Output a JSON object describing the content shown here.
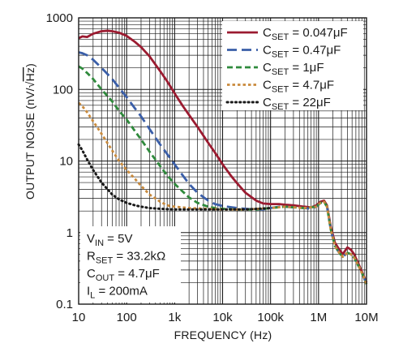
{
  "chart_data": {
    "type": "line",
    "xscale": "log",
    "yscale": "log",
    "xlim": [
      10,
      10000000
    ],
    "ylim": [
      0.1,
      1000
    ],
    "grid": true,
    "xlabel": "FREQUENCY (Hz)",
    "ylabel_parts": [
      "OUTPUT NOISE (nV/",
      "√",
      "Hz",
      ")"
    ],
    "xticks": [
      {
        "value": 10,
        "label": "10"
      },
      {
        "value": 100,
        "label": "100"
      },
      {
        "value": 1000,
        "label": "1k"
      },
      {
        "value": 10000,
        "label": "10k"
      },
      {
        "value": 100000,
        "label": "100k"
      },
      {
        "value": 1000000,
        "label": "1M"
      },
      {
        "value": 10000000,
        "label": "10M"
      }
    ],
    "yticks": [
      {
        "value": 0.1,
        "label": "0.1"
      },
      {
        "value": 1,
        "label": "1"
      },
      {
        "value": 10,
        "label": "10"
      },
      {
        "value": 100,
        "label": "100"
      },
      {
        "value": 1000,
        "label": "1000"
      }
    ],
    "legend_position": "top-right",
    "series": [
      {
        "label_main": "C",
        "label_sub": "SET",
        "label_value": " = 0.047μF",
        "color": "#9b1b30",
        "dash": "solid",
        "points": [
          [
            10,
            520
          ],
          [
            12,
            550
          ],
          [
            15,
            540
          ],
          [
            20,
            600
          ],
          [
            30,
            650
          ],
          [
            40,
            660
          ],
          [
            50,
            650
          ],
          [
            70,
            620
          ],
          [
            100,
            560
          ],
          [
            150,
            460
          ],
          [
            200,
            390
          ],
          [
            300,
            290
          ],
          [
            500,
            180
          ],
          [
            700,
            130
          ],
          [
            1000,
            88
          ],
          [
            1500,
            58
          ],
          [
            2000,
            44
          ],
          [
            3000,
            30
          ],
          [
            5000,
            18
          ],
          [
            7000,
            13
          ],
          [
            10000,
            9
          ],
          [
            15000,
            6.2
          ],
          [
            20000,
            4.9
          ],
          [
            30000,
            3.6
          ],
          [
            50000,
            2.8
          ],
          [
            70000,
            2.55
          ],
          [
            100000,
            2.5
          ],
          [
            150000,
            2.5
          ],
          [
            200000,
            2.45
          ],
          [
            300000,
            2.4
          ],
          [
            500000,
            2.3
          ],
          [
            700000,
            2.25
          ],
          [
            900000,
            2.4
          ],
          [
            1100000,
            2.7
          ],
          [
            1300000,
            2.8
          ],
          [
            1500000,
            2.4
          ],
          [
            1800000,
            1.2
          ],
          [
            2200000,
            0.72
          ],
          [
            2700000,
            0.58
          ],
          [
            3200000,
            0.5
          ],
          [
            4000000,
            0.62
          ],
          [
            4700000,
            0.58
          ],
          [
            5500000,
            0.5
          ],
          [
            7000000,
            0.35
          ],
          [
            8500000,
            0.26
          ],
          [
            10000000,
            0.2
          ]
        ]
      },
      {
        "label_main": "C",
        "label_sub": "SET",
        "label_value": " = 0.47μF",
        "color": "#3a5ea8",
        "dash": "long",
        "points": [
          [
            10,
            330
          ],
          [
            12,
            320
          ],
          [
            15,
            300
          ],
          [
            20,
            260
          ],
          [
            30,
            200
          ],
          [
            50,
            140
          ],
          [
            70,
            105
          ],
          [
            100,
            78
          ],
          [
            150,
            54
          ],
          [
            200,
            42
          ],
          [
            300,
            28
          ],
          [
            500,
            17
          ],
          [
            700,
            12.5
          ],
          [
            1000,
            9
          ],
          [
            1500,
            6.2
          ],
          [
            2000,
            4.8
          ],
          [
            3000,
            3.6
          ],
          [
            5000,
            2.8
          ],
          [
            7000,
            2.5
          ],
          [
            10000,
            2.35
          ],
          [
            20000,
            2.2
          ],
          [
            30000,
            2.15
          ],
          [
            50000,
            2.1
          ],
          [
            70000,
            2.1
          ],
          [
            100000,
            2.2
          ],
          [
            150000,
            2.3
          ],
          [
            200000,
            2.3
          ],
          [
            300000,
            2.25
          ],
          [
            500000,
            2.2
          ],
          [
            700000,
            2.15
          ],
          [
            900000,
            2.3
          ],
          [
            1100000,
            2.6
          ],
          [
            1300000,
            2.7
          ],
          [
            1500000,
            2.3
          ],
          [
            1800000,
            1.1
          ],
          [
            2200000,
            0.65
          ],
          [
            2700000,
            0.52
          ],
          [
            3200000,
            0.46
          ],
          [
            4000000,
            0.52
          ],
          [
            4700000,
            0.5
          ],
          [
            5500000,
            0.45
          ],
          [
            7000000,
            0.33
          ],
          [
            8500000,
            0.25
          ],
          [
            10000000,
            0.19
          ]
        ]
      },
      {
        "label_main": "C",
        "label_sub": "SET",
        "label_value": " = 1μF",
        "color": "#2f8a3c",
        "dash": "med",
        "points": [
          [
            10,
            210
          ],
          [
            12,
            195
          ],
          [
            15,
            170
          ],
          [
            20,
            140
          ],
          [
            30,
            100
          ],
          [
            50,
            68
          ],
          [
            70,
            50
          ],
          [
            100,
            38
          ],
          [
            150,
            26
          ],
          [
            200,
            20
          ],
          [
            300,
            13.5
          ],
          [
            500,
            8.5
          ],
          [
            700,
            6.3
          ],
          [
            1000,
            4.8
          ],
          [
            1500,
            3.7
          ],
          [
            2000,
            3.1
          ],
          [
            3000,
            2.6
          ],
          [
            5000,
            2.3
          ],
          [
            7000,
            2.2
          ],
          [
            10000,
            2.15
          ],
          [
            20000,
            2.1
          ],
          [
            50000,
            2.1
          ],
          [
            100000,
            2.2
          ],
          [
            200000,
            2.3
          ],
          [
            500000,
            2.2
          ],
          [
            900000,
            2.3
          ],
          [
            1100000,
            2.6
          ],
          [
            1300000,
            2.7
          ],
          [
            1500000,
            2.3
          ],
          [
            1800000,
            1.1
          ],
          [
            2200000,
            0.65
          ],
          [
            2700000,
            0.52
          ],
          [
            3200000,
            0.46
          ],
          [
            4000000,
            0.52
          ],
          [
            4700000,
            0.5
          ],
          [
            5500000,
            0.45
          ],
          [
            7000000,
            0.33
          ],
          [
            8500000,
            0.25
          ],
          [
            10000000,
            0.19
          ]
        ]
      },
      {
        "label_main": "C",
        "label_sub": "SET",
        "label_value": " = 4.7μF",
        "color": "#c98a3c",
        "dash": "short",
        "points": [
          [
            10,
            65
          ],
          [
            12,
            58
          ],
          [
            15,
            48
          ],
          [
            20,
            36
          ],
          [
            30,
            24
          ],
          [
            50,
            14
          ],
          [
            70,
            10
          ],
          [
            100,
            7.5
          ],
          [
            150,
            5.6
          ],
          [
            200,
            4.5
          ],
          [
            300,
            3.4
          ],
          [
            500,
            2.7
          ],
          [
            700,
            2.4
          ],
          [
            1000,
            2.3
          ],
          [
            2000,
            2.2
          ],
          [
            5000,
            2.15
          ],
          [
            10000,
            2.1
          ],
          [
            30000,
            2.1
          ],
          [
            100000,
            2.2
          ],
          [
            200000,
            2.3
          ],
          [
            500000,
            2.2
          ],
          [
            900000,
            2.3
          ],
          [
            1100000,
            2.6
          ],
          [
            1300000,
            2.7
          ],
          [
            1500000,
            2.3
          ],
          [
            1800000,
            1.1
          ],
          [
            2200000,
            0.65
          ],
          [
            2700000,
            0.52
          ],
          [
            3200000,
            0.46
          ],
          [
            4000000,
            0.52
          ],
          [
            4700000,
            0.5
          ],
          [
            5500000,
            0.45
          ],
          [
            7000000,
            0.33
          ],
          [
            8500000,
            0.25
          ],
          [
            10000000,
            0.19
          ]
        ]
      },
      {
        "label_main": "C",
        "label_sub": "SET",
        "label_value": " = 22μF",
        "color": "#1a1a1a",
        "dash": "dot",
        "points": [
          [
            10,
            17
          ],
          [
            12,
            14
          ],
          [
            15,
            10.5
          ],
          [
            20,
            7.5
          ],
          [
            30,
            5
          ],
          [
            50,
            3.4
          ],
          [
            70,
            2.9
          ],
          [
            100,
            2.6
          ],
          [
            150,
            2.4
          ],
          [
            200,
            2.3
          ],
          [
            300,
            2.2
          ],
          [
            500,
            2.15
          ],
          [
            1000,
            2.1
          ],
          [
            3000,
            2.1
          ],
          [
            10000,
            2.1
          ],
          [
            30000,
            2.1
          ],
          [
            100000,
            2.2
          ]
        ]
      }
    ],
    "conditions": [
      {
        "main": "V",
        "sub": "IN",
        "value": " = 5V"
      },
      {
        "main": "R",
        "sub": "SET",
        "value": " = 33.2kΩ"
      },
      {
        "main": "C",
        "sub": "OUT",
        "value": " = 4.7μF"
      },
      {
        "main": "I",
        "sub": "L",
        "value": " = 200mA"
      }
    ]
  }
}
